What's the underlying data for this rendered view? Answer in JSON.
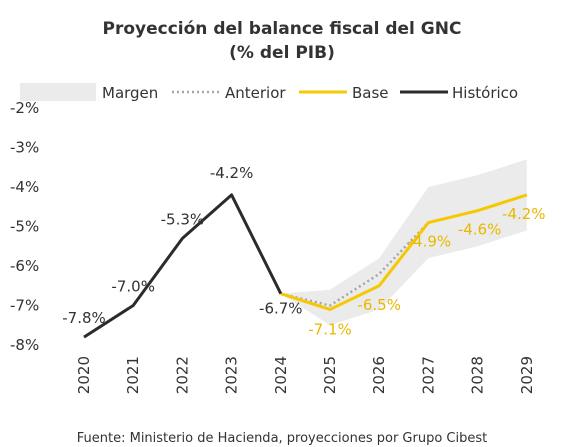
{
  "chart_data": {
    "type": "line",
    "title": "Proyección del balance fiscal del GNC",
    "subtitle": "(% del PIB)",
    "categories": [
      "2020",
      "2021",
      "2022",
      "2023",
      "2024",
      "2025",
      "2026",
      "2027",
      "2028",
      "2029"
    ],
    "ylim": [
      -8,
      -2
    ],
    "yticks": [
      -2,
      -3,
      -4,
      -5,
      -6,
      -7,
      -8
    ],
    "ytick_labels": [
      "-2%",
      "-3%",
      "-4%",
      "-5%",
      "-6%",
      "-7%",
      "-8%"
    ],
    "legend_position": "top",
    "grid": false,
    "series": [
      {
        "name": "Histórico",
        "color": "#2b2b2b",
        "x": [
          "2020",
          "2021",
          "2022",
          "2023",
          "2024"
        ],
        "values": [
          -7.8,
          -7.0,
          -5.3,
          -4.2,
          -6.7
        ],
        "labels": [
          "-7.8%",
          "-7.0%",
          "-5.3%",
          "-4.2%",
          "-6.7%"
        ]
      },
      {
        "name": "Base",
        "color": "#f5c800",
        "x": [
          "2024",
          "2025",
          "2026",
          "2027",
          "2028",
          "2029"
        ],
        "values": [
          -6.7,
          -7.1,
          -6.5,
          -4.9,
          -4.6,
          -4.2
        ],
        "labels": [
          "",
          "-7.1%",
          "-6.5%",
          "-4.9%",
          "-4.6%",
          "-4.2%"
        ]
      },
      {
        "name": "Anterior",
        "color": "#a6a6a6",
        "x": [
          "2024",
          "2025",
          "2026",
          "2027"
        ],
        "values": [
          -6.7,
          -7.0,
          -6.2,
          -4.9
        ]
      },
      {
        "name": "Margen",
        "color": "#ebebeb",
        "x": [
          "2024",
          "2025",
          "2026",
          "2027",
          "2028",
          "2029"
        ],
        "upper": [
          -6.7,
          -6.6,
          -5.8,
          -4.0,
          -3.7,
          -3.3
        ],
        "lower": [
          -6.7,
          -7.5,
          -7.1,
          -5.8,
          -5.5,
          -5.1
        ]
      }
    ],
    "source": "Fuente: Ministerio de Hacienda, proyecciones por Grupo Cibest"
  }
}
